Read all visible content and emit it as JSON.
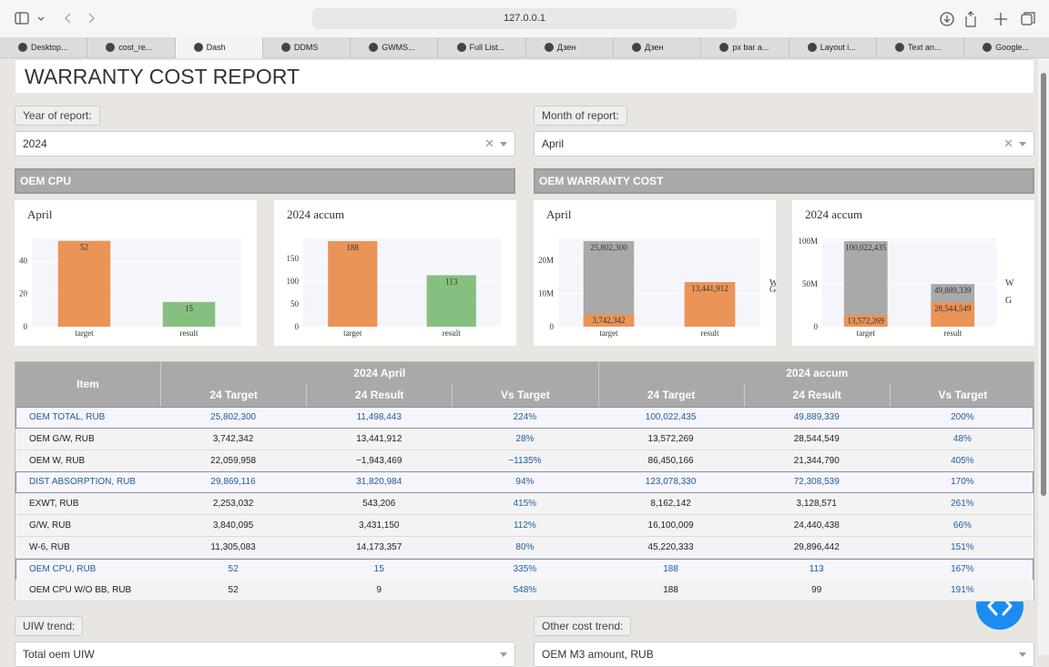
{
  "browser": {
    "url": "127.0.0.1",
    "active_tab": 2,
    "tabs": [
      "Desktop...",
      "cost_re...",
      "Dash",
      "DDMS",
      "GWMS...",
      "Full List...",
      "Дзен",
      "Дзен",
      "px bar a...",
      "Layout i...",
      "Text an...",
      "Google..."
    ]
  },
  "header": {
    "title": "WARRANTY COST REPORT"
  },
  "filters": [
    {
      "label": "Year of report:",
      "value": "2024"
    },
    {
      "label": "Month of report:",
      "value": "April"
    }
  ],
  "sections": [
    "OEM CPU",
    "OEM WARRANTY COST"
  ],
  "chart_data": [
    {
      "type": "bar",
      "title": "April",
      "categories": [
        "target",
        "result"
      ],
      "values": [
        52,
        15
      ],
      "colors": [
        "#eb9458",
        "#86c07f"
      ],
      "ylim": [
        0,
        53.5
      ],
      "yticks": [
        0,
        20,
        40
      ],
      "grid": true
    },
    {
      "type": "bar",
      "title": "2024 accum",
      "categories": [
        "target",
        "result"
      ],
      "values": [
        188,
        113
      ],
      "colors": [
        "#eb9458",
        "#86c07f"
      ],
      "ylim": [
        0,
        194
      ],
      "yticks": [
        0,
        50,
        100,
        150
      ],
      "grid": true
    },
    {
      "type": "bar",
      "barmode": "overlay",
      "title": "April",
      "categories": [
        "target",
        "result"
      ],
      "series": [
        {
          "name": "W",
          "color": "#a9a9a9",
          "values": [
            25802300,
            11498443
          ],
          "value_labels": [
            "25,802,300",
            null
          ]
        },
        {
          "name": "G",
          "color": "#eb9458",
          "values": [
            3742342,
            13441912
          ],
          "value_labels": [
            "3,742,342",
            "13,441,912"
          ]
        }
      ],
      "ylim": [
        0,
        26600000
      ],
      "yticks": [
        0,
        {
          "value": 10000000,
          "label": "10M"
        },
        {
          "value": 20000000,
          "label": "20M"
        }
      ],
      "grid": true
    },
    {
      "type": "bar",
      "barmode": "overlay",
      "title": "2024 accum",
      "categories": [
        "target",
        "result"
      ],
      "series": [
        {
          "name": "W",
          "color": "#a9a9a9",
          "values": [
            100022435,
            49889339
          ],
          "value_labels": [
            "100,022,435",
            "49,889,339"
          ]
        },
        {
          "name": "G",
          "color": "#eb9458",
          "values": [
            13572269,
            28544549
          ],
          "value_labels": [
            "13,572,269",
            "28,544,549"
          ]
        }
      ],
      "ylim": [
        0,
        103200000
      ],
      "yticks": [
        0,
        {
          "value": 50000000,
          "label": "50M"
        },
        {
          "value": 100000000,
          "label": "100M"
        }
      ],
      "grid": true
    }
  ],
  "table": {
    "item_header": "Item",
    "groups": [
      "2024 April",
      "2024 accum"
    ],
    "columns": [
      "24 Target",
      "24 Result",
      "Vs Target",
      "24 Target",
      "24 Result",
      "Vs Target"
    ],
    "row_groups": [
      {
        "total": [
          "OEM TOTAL, RUB",
          "25,802,300",
          "11,498,443",
          "224%",
          "100,022,435",
          "49,889,339",
          "200%"
        ],
        "rows": [
          [
            "OEM G/W, RUB",
            "3,742,342",
            "13,441,912",
            "28%",
            "13,572,269",
            "28,544,549",
            "48%"
          ],
          [
            "OEM W, RUB",
            "22,059,958",
            "−1,943,469",
            "−1135%",
            "86,450,166",
            "21,344,790",
            "405%"
          ]
        ]
      },
      {
        "total": [
          "DIST ABSORPTION, RUB",
          "29,869,116",
          "31,820,984",
          "94%",
          "123,078,330",
          "72,308,539",
          "170%"
        ],
        "rows": [
          [
            "EXWT, RUB",
            "2,253,032",
            "543,206",
            "415%",
            "8,162,142",
            "3,128,571",
            "261%"
          ],
          [
            "G/W, RUB",
            "3,840,095",
            "3,431,150",
            "112%",
            "16,100,009",
            "24,440,438",
            "66%"
          ],
          [
            "W-6, RUB",
            "11,305,083",
            "14,173,357",
            "80%",
            "45,220,333",
            "29,896,442",
            "151%"
          ]
        ]
      },
      {
        "total": [
          "OEM CPU, RUB",
          "52",
          "15",
          "335%",
          "188",
          "113",
          "167%"
        ],
        "rows": [
          [
            "OEM CPU W/O BB, RUB",
            "52",
            "9",
            "548%",
            "188",
            "99",
            "191%"
          ]
        ]
      }
    ]
  },
  "bottom_filters": [
    {
      "label": "UIW trend:",
      "value": "Total oem UIW"
    },
    {
      "label": "Other cost trend:",
      "value": "OEM M3 amount, RUB"
    }
  ]
}
